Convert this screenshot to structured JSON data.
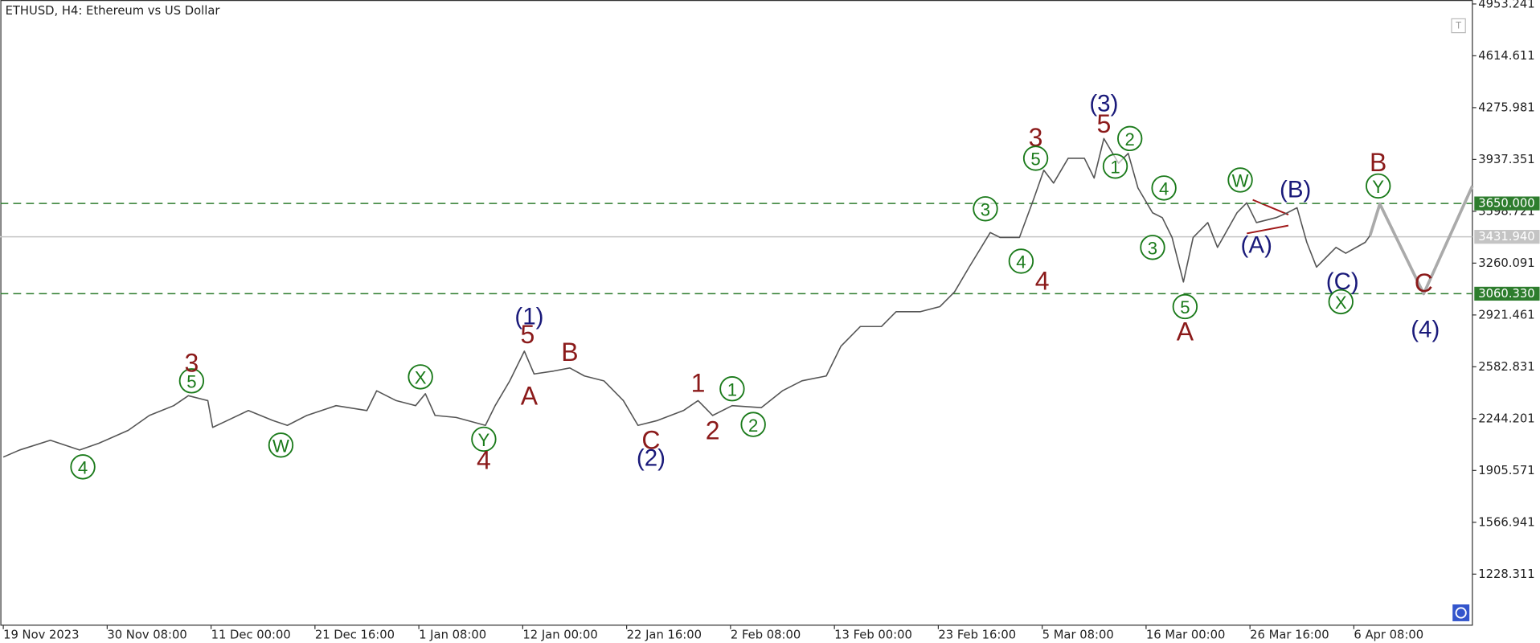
{
  "chart_data": {
    "type": "line",
    "title": "ETHUSD, H4:  Ethereum vs US Dollar",
    "xlim": [
      -1.8,
      905
    ],
    "xticks": [
      {
        "value": 0,
        "label": "19 Nov 2023"
      },
      {
        "value": 64,
        "label": "30 Nov 08:00"
      },
      {
        "value": 128,
        "label": "11 Dec 00:00"
      },
      {
        "value": 192,
        "label": "21 Dec 16:00"
      },
      {
        "value": 256,
        "label": "1 Jan 08:00"
      },
      {
        "value": 320,
        "label": "12 Jan 00:00"
      },
      {
        "value": 384,
        "label": "22 Jan 16:00"
      },
      {
        "value": 448,
        "label": "2 Feb 08:00"
      },
      {
        "value": 512,
        "label": "13 Feb 00:00"
      },
      {
        "value": 576,
        "label": "23 Feb 16:00"
      },
      {
        "value": 640,
        "label": "5 Mar 08:00"
      },
      {
        "value": 704,
        "label": "16 Mar 00:00"
      },
      {
        "value": 768,
        "label": "26 Mar 16:00"
      },
      {
        "value": 832,
        "label": "6 Apr 08:00"
      }
    ],
    "ylim": [
      894.7,
      4979.1
    ],
    "yticks": [
      1228.311,
      1566.941,
      1905.571,
      2244.201,
      2582.831,
      2921.461,
      3260.091,
      3598.721,
      3937.351,
      4275.981,
      4614.611,
      4953.241
    ],
    "series": [
      {
        "color": "#555555",
        "x": [
          0,
          10,
          29,
          47,
          59,
          77,
          90,
          105,
          114,
          126,
          129,
          138,
          151,
          166,
          175,
          187,
          205,
          224,
          230,
          242,
          254,
          260,
          266,
          279,
          297,
          303,
          312,
          321,
          327,
          339,
          349,
          358,
          370,
          382,
          391,
          403,
          419,
          428,
          437,
          449,
          467,
          480,
          492,
          507,
          516,
          528,
          541,
          550,
          565,
          577,
          586,
          595,
          608,
          614,
          626,
          635,
          641,
          647,
          656,
          666,
          672,
          678,
          687,
          693,
          699,
          708,
          714,
          720,
          727,
          733,
          742,
          748,
          760,
          766,
          772,
          784,
          791,
          797,
          803,
          809,
          821,
          827,
          839,
          842
        ],
        "values": [
          1993,
          2039,
          2103,
          2039,
          2084,
          2168,
          2265,
          2329,
          2394,
          2362,
          2187,
          2232,
          2297,
          2232,
          2200,
          2265,
          2329,
          2297,
          2426,
          2362,
          2329,
          2407,
          2265,
          2252,
          2200,
          2329,
          2491,
          2685,
          2536,
          2555,
          2575,
          2523,
          2491,
          2362,
          2200,
          2232,
          2297,
          2362,
          2265,
          2329,
          2316,
          2426,
          2491,
          2523,
          2717,
          2846,
          2846,
          2943,
          2943,
          2976,
          3072,
          3234,
          3460,
          3428,
          3428,
          3686,
          3867,
          3783,
          3945,
          3945,
          3816,
          4074,
          3913,
          3977,
          3751,
          3589,
          3557,
          3428,
          3137,
          3428,
          3525,
          3363,
          3589,
          3654,
          3525,
          3557,
          3589,
          3622,
          3396,
          3234,
          3363,
          3325,
          3396,
          3441
        ]
      },
      {
        "color": "#aaaaaa",
        "x": [
          842,
          848,
          875,
          905
        ],
        "values": [
          3441,
          3647,
          3060,
          3764
        ]
      }
    ],
    "levels": [
      {
        "value": 3650,
        "label": "3650.000",
        "color": "#2e7d2e",
        "dashed": true
      },
      {
        "value": 3060.33,
        "label": "3060.330",
        "color": "#2e7d2e",
        "dashed": true
      },
      {
        "value": 3431.94,
        "label": "3431.940",
        "color": "#c4c4c4",
        "dashed": false
      }
    ],
    "annotations": [
      {
        "text": "4",
        "x": 49,
        "y": 1929,
        "color": "#1a7a1a",
        "circled": true
      },
      {
        "text": "5",
        "x": 116,
        "y": 2491,
        "color": "#1a7a1a",
        "circled": true
      },
      {
        "text": "3",
        "x": 116,
        "y": 2614,
        "color": "#8b1a1a",
        "circled": false
      },
      {
        "text": "W",
        "x": 171,
        "y": 2071,
        "color": "#1a7a1a",
        "circled": true
      },
      {
        "text": "X",
        "x": 257,
        "y": 2517,
        "color": "#1a7a1a",
        "circled": true
      },
      {
        "text": "Y",
        "x": 296,
        "y": 2110,
        "color": "#1a7a1a",
        "circled": true
      },
      {
        "text": "4",
        "x": 296,
        "y": 1980,
        "color": "#8b1a1a",
        "circled": false
      },
      {
        "text": "(1)",
        "x": 324,
        "y": 2917,
        "color": "#1a1a7a",
        "circled": false
      },
      {
        "text": "5",
        "x": 323,
        "y": 2801,
        "color": "#8b1a1a",
        "circled": false
      },
      {
        "text": "A",
        "x": 324,
        "y": 2400,
        "color": "#8b1a1a",
        "circled": false
      },
      {
        "text": "B",
        "x": 349,
        "y": 2685,
        "color": "#8b1a1a",
        "circled": false
      },
      {
        "text": "C",
        "x": 399,
        "y": 2110,
        "color": "#8b1a1a",
        "circled": false
      },
      {
        "text": "(2)",
        "x": 399,
        "y": 1993,
        "color": "#1a1a7a",
        "circled": false
      },
      {
        "text": "1",
        "x": 428,
        "y": 2484,
        "color": "#8b1a1a",
        "circled": false
      },
      {
        "text": "1",
        "x": 449,
        "y": 2439,
        "color": "#1a7a1a",
        "circled": true
      },
      {
        "text": "2",
        "x": 437,
        "y": 2174,
        "color": "#8b1a1a",
        "circled": false
      },
      {
        "text": "2",
        "x": 462,
        "y": 2206,
        "color": "#1a7a1a",
        "circled": true
      },
      {
        "text": "3",
        "x": 605,
        "y": 3615,
        "color": "#1a7a1a",
        "circled": true
      },
      {
        "text": "4",
        "x": 627,
        "y": 3273,
        "color": "#1a7a1a",
        "circled": true
      },
      {
        "text": "3",
        "x": 636,
        "y": 4087,
        "color": "#8b1a1a",
        "circled": false
      },
      {
        "text": "5",
        "x": 636,
        "y": 3945,
        "color": "#1a7a1a",
        "circled": true
      },
      {
        "text": "4",
        "x": 640,
        "y": 3150,
        "color": "#8b1a1a",
        "circled": false
      },
      {
        "text": "(3)",
        "x": 678,
        "y": 4307,
        "color": "#1a1a7a",
        "circled": false
      },
      {
        "text": "5",
        "x": 678,
        "y": 4178,
        "color": "#8b1a1a",
        "circled": false
      },
      {
        "text": "2",
        "x": 694,
        "y": 4074,
        "color": "#1a7a1a",
        "circled": true
      },
      {
        "text": "1",
        "x": 685,
        "y": 3893,
        "color": "#1a7a1a",
        "circled": true
      },
      {
        "text": "4",
        "x": 715,
        "y": 3751,
        "color": "#1a7a1a",
        "circled": true
      },
      {
        "text": "3",
        "x": 708,
        "y": 3363,
        "color": "#1a7a1a",
        "circled": true
      },
      {
        "text": "5",
        "x": 728,
        "y": 2976,
        "color": "#1a7a1a",
        "circled": true
      },
      {
        "text": "A",
        "x": 728,
        "y": 2820,
        "color": "#8b1a1a",
        "circled": false
      },
      {
        "text": "W",
        "x": 762,
        "y": 3803,
        "color": "#1a7a1a",
        "circled": true
      },
      {
        "text": "(A)",
        "x": 772,
        "y": 3383,
        "color": "#1a1a7a",
        "circled": false
      },
      {
        "text": "(B)",
        "x": 796,
        "y": 3745,
        "color": "#1a1a7a",
        "circled": false
      },
      {
        "text": "(C)",
        "x": 825,
        "y": 3144,
        "color": "#1a1a7a",
        "circled": false
      },
      {
        "text": "X",
        "x": 824,
        "y": 3008,
        "color": "#1a7a1a",
        "circled": true
      },
      {
        "text": "B",
        "x": 847,
        "y": 3926,
        "color": "#8b1a1a",
        "circled": false
      },
      {
        "text": "Y",
        "x": 847,
        "y": 3764,
        "color": "#1a7a1a",
        "circled": true
      },
      {
        "text": "C",
        "x": 875,
        "y": 3137,
        "color": "#8b1a1a",
        "circled": false
      },
      {
        "text": "(4)",
        "x": 876,
        "y": 2833,
        "color": "#1a1a7a",
        "circled": false
      }
    ]
  }
}
